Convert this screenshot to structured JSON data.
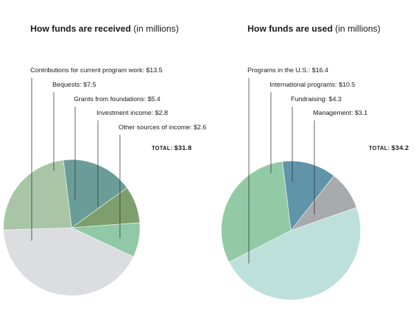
{
  "charts": [
    {
      "id": "received",
      "title_bold": "How funds are received",
      "title_rest": "(in millions)",
      "total_label": "TOTAL:",
      "total_value": "$31.8",
      "slices": [
        {
          "label": "Contributions for current program work: $13.5",
          "value": 13.5,
          "color": "#dcdde0"
        },
        {
          "label": "Bequests: $7.5",
          "value": 7.5,
          "color": "#a8c5a6"
        },
        {
          "label": "Grants from foundations: $5.4",
          "value": 5.4,
          "color": "#6a9d98"
        },
        {
          "label": "Investment income: $2.8",
          "value": 2.8,
          "color": "#7e9f6d"
        },
        {
          "label": "Other sources of income: $2.6",
          "value": 2.6,
          "color": "#91c8a6"
        }
      ]
    },
    {
      "id": "used",
      "title_bold": "How funds are used",
      "title_rest": "(in millions)",
      "total_label": "TOTAL:",
      "total_value": "$34.2",
      "slices": [
        {
          "label": "Programs in the U.S.: $16.4",
          "value": 16.4,
          "color": "#bde0da"
        },
        {
          "label": "International programs: $10.5",
          "value": 10.5,
          "color": "#93caa6"
        },
        {
          "label": "Fundraising: $4.3",
          "value": 4.3,
          "color": "#6094a9"
        },
        {
          "label": "Management: $3.1",
          "value": 3.1,
          "color": "#a8aaad"
        }
      ]
    }
  ],
  "chart_data": [
    {
      "type": "pie",
      "title": "How funds are received (in millions)",
      "categories": [
        "Contributions for current program work",
        "Bequests",
        "Grants from foundations",
        "Investment income",
        "Other sources of income"
      ],
      "values": [
        13.5,
        7.5,
        5.4,
        2.8,
        2.6
      ],
      "total": 31.8
    },
    {
      "type": "pie",
      "title": "How funds are used (in millions)",
      "categories": [
        "Programs in the U.S.",
        "International programs",
        "Fundraising",
        "Management"
      ],
      "values": [
        16.4,
        10.5,
        4.3,
        3.1
      ],
      "total": 34.2
    }
  ]
}
